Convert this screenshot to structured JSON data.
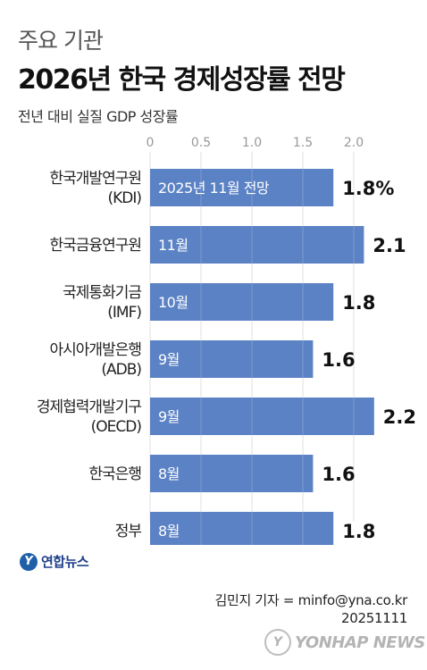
{
  "header": {
    "kicker": "주요 기관",
    "title": "2026년 한국 경제성장률 전망",
    "note": "전년 대비 실질 GDP 성장률"
  },
  "chart_data": {
    "type": "bar",
    "orientation": "horizontal",
    "title": "2026년 한국 경제성장률 전망",
    "xlim": [
      0,
      2.2
    ],
    "ticks": [
      "0",
      "0.5",
      "1.0",
      "1.5",
      "2.0"
    ],
    "categories": [
      [
        "한국개발연구원",
        "(KDI)"
      ],
      [
        "한국금융연구원"
      ],
      [
        "국제통화기금",
        "(IMF)"
      ],
      [
        "아시아개발은행",
        "(ADB)"
      ],
      [
        "경제협력개발기구",
        "(OECD)"
      ],
      [
        "한국은행"
      ],
      [
        "정부"
      ]
    ],
    "values": [
      1.8,
      2.1,
      1.8,
      1.6,
      2.2,
      1.6,
      1.8
    ],
    "value_labels": [
      "1.8%",
      "2.1",
      "1.8",
      "1.6",
      "2.2",
      "1.6",
      "1.8"
    ],
    "bar_labels": [
      "2025년 11월 전망",
      "11월",
      "10월",
      "9월",
      "9월",
      "8월",
      "8월"
    ],
    "bar_color": "#5b82c4",
    "grid": true
  },
  "footer": {
    "logo_mark": "Y",
    "logo_text": "연합뉴스",
    "credit_line1": "김민지 기자 = minfo@yna.co.kr",
    "credit_line2": "20251111",
    "watermark_mark": "Y",
    "watermark_text": "YONHAP NEWS"
  }
}
